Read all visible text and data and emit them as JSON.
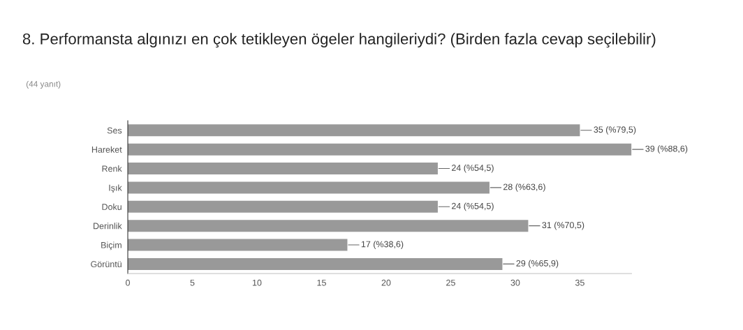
{
  "chart_data": {
    "type": "bar",
    "orientation": "horizontal",
    "title": "8. Performansta algınızı en çok tetikleyen ögeler hangileriydi? (Birden fazla cevap seçilebilir)",
    "subtitle": "(44 yanıt)",
    "categories": [
      "Ses",
      "Hareket",
      "Renk",
      "Işık",
      "Doku",
      "Derinlik",
      "Biçim",
      "Görüntü"
    ],
    "values": [
      35,
      39,
      24,
      28,
      24,
      31,
      17,
      29
    ],
    "value_labels": [
      "35 (%79,5)",
      "39 (%88,6)",
      "24 (%54,5)",
      "28 (%63,6)",
      "24 (%54,5)",
      "31 (%70,5)",
      "17 (%38,6)",
      "29 (%65,9)"
    ],
    "color": "#999999",
    "xlim": [
      0,
      39
    ],
    "xticks": [
      0,
      5,
      10,
      15,
      20,
      25,
      30,
      35
    ],
    "grid": false,
    "legend": false
  }
}
